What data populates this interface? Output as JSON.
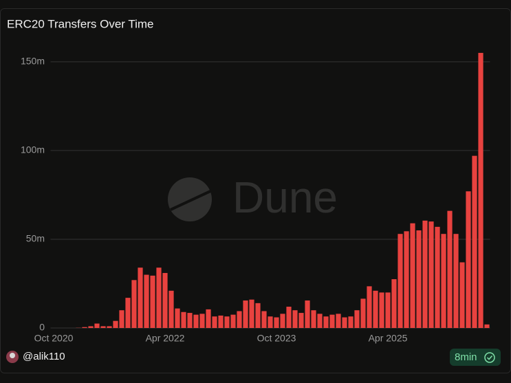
{
  "chart_data": {
    "type": "bar",
    "title": "ERC20 Transfers Over Time",
    "watermark": "Dune",
    "categories": [
      "Oct 2020",
      null,
      null,
      null,
      null,
      null,
      null,
      null,
      null,
      null,
      null,
      null,
      null,
      null,
      null,
      null,
      null,
      null,
      "Apr 2022",
      null,
      null,
      null,
      null,
      null,
      null,
      null,
      null,
      null,
      null,
      null,
      null,
      null,
      null,
      null,
      null,
      null,
      "Oct 2023",
      null,
      null,
      null,
      null,
      null,
      null,
      null,
      null,
      null,
      null,
      null,
      null,
      null,
      null,
      null,
      null,
      null,
      "Apr 2025",
      null,
      null,
      null,
      null,
      null,
      null,
      null,
      null,
      null,
      null,
      null,
      null,
      null,
      null,
      null,
      null
    ],
    "values": [
      0,
      0,
      0,
      0,
      0.1,
      0.5,
      1,
      2.5,
      1,
      1,
      4,
      10,
      17,
      27,
      34,
      30,
      29.5,
      34,
      31,
      21,
      11,
      9,
      8.5,
      7.5,
      8,
      10.5,
      6.5,
      7,
      6.5,
      7.5,
      9.5,
      15.5,
      16,
      14,
      9.5,
      6.5,
      6,
      8,
      12,
      10,
      8.5,
      15.5,
      10,
      8,
      6.5,
      7.5,
      8,
      6,
      6.5,
      10,
      16.5,
      23.5,
      21,
      20,
      20,
      27.5,
      53,
      54.5,
      59,
      55,
      60.5,
      60,
      57,
      53,
      66,
      53,
      37,
      77,
      97,
      155,
      2
    ],
    "color": "#e8423f",
    "ylim": [
      0,
      160
    ],
    "yticks": [
      0,
      {
        "value": 50,
        "label": "50m"
      },
      {
        "value": 100,
        "label": "100m"
      },
      {
        "value": 150,
        "label": "150m"
      }
    ],
    "grid": true
  },
  "footer": {
    "user": "@alik110",
    "refresh": "8min"
  }
}
